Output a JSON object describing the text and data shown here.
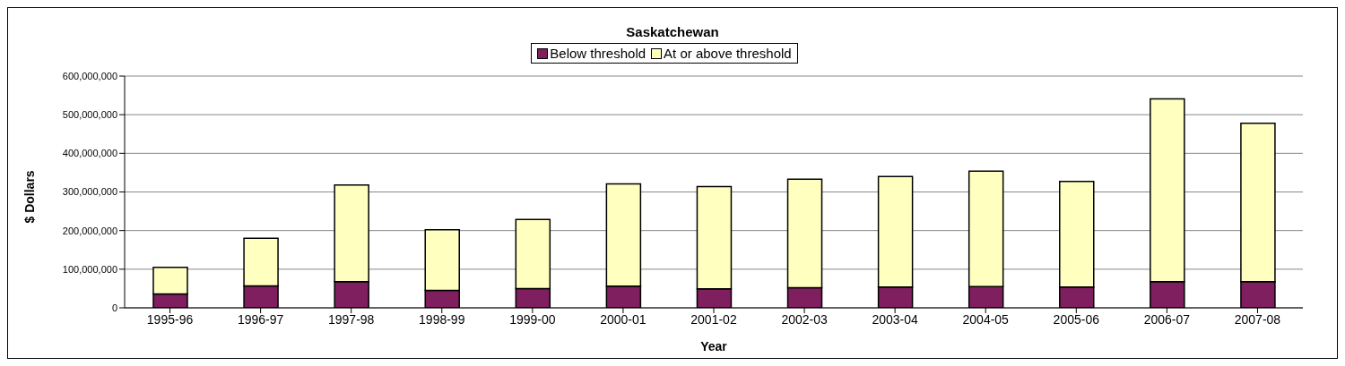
{
  "chart_data": {
    "type": "bar",
    "title": "Saskatchewan",
    "xlabel": "Year",
    "ylabel": "$ Dollars",
    "categories": [
      "1995-96",
      "1996-97",
      "1997-98",
      "1998-99",
      "1999-00",
      "2000-01",
      "2001-02",
      "2002-03",
      "2003-04",
      "2004-05",
      "2005-06",
      "2006-07",
      "2007-08"
    ],
    "series": [
      {
        "name": "Below threshold",
        "color": "#7f1f5f",
        "values": [
          36000000,
          57000000,
          68000000,
          45000000,
          50000000,
          56000000,
          49000000,
          52000000,
          54000000,
          55000000,
          54000000,
          68000000,
          68000000
        ]
      },
      {
        "name": "At or above threshold",
        "color": "#ffffc0",
        "values": [
          69000000,
          123000000,
          250000000,
          157000000,
          179000000,
          265000000,
          265000000,
          281000000,
          286000000,
          299000000,
          273000000,
          473000000,
          410000000
        ]
      }
    ],
    "stacked": true,
    "ylim": [
      0,
      600000000
    ],
    "yticks": [
      0,
      {
        "value": 100000000,
        "label": "100,000,000"
      },
      {
        "value": 200000000,
        "label": "200,000,000"
      },
      {
        "value": 300000000,
        "label": "300,000,000"
      },
      {
        "value": 400000000,
        "label": "400,000,000"
      },
      {
        "value": 500000000,
        "label": "500,000,000"
      },
      {
        "value": 600000000,
        "label": "600,000,000"
      }
    ],
    "grid": "y",
    "legend": "top"
  }
}
